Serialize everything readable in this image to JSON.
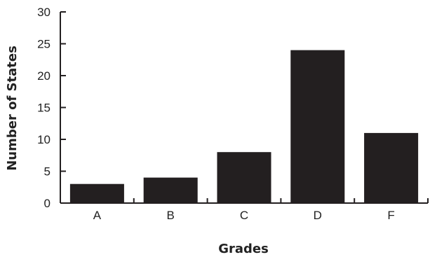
{
  "chart_data": {
    "type": "bar",
    "title": "",
    "xlabel": "Grades",
    "ylabel": "Number of States",
    "categories": [
      "A",
      "B",
      "C",
      "D",
      "F"
    ],
    "values": [
      3,
      4,
      8,
      24,
      11
    ],
    "ylim": [
      0,
      30
    ],
    "yticks": [
      "0",
      "5",
      "10",
      "15",
      "20",
      "25",
      "30"
    ],
    "grid": false,
    "legend": "none",
    "bar_color": "#231f20",
    "axis_color": "#231f20"
  }
}
